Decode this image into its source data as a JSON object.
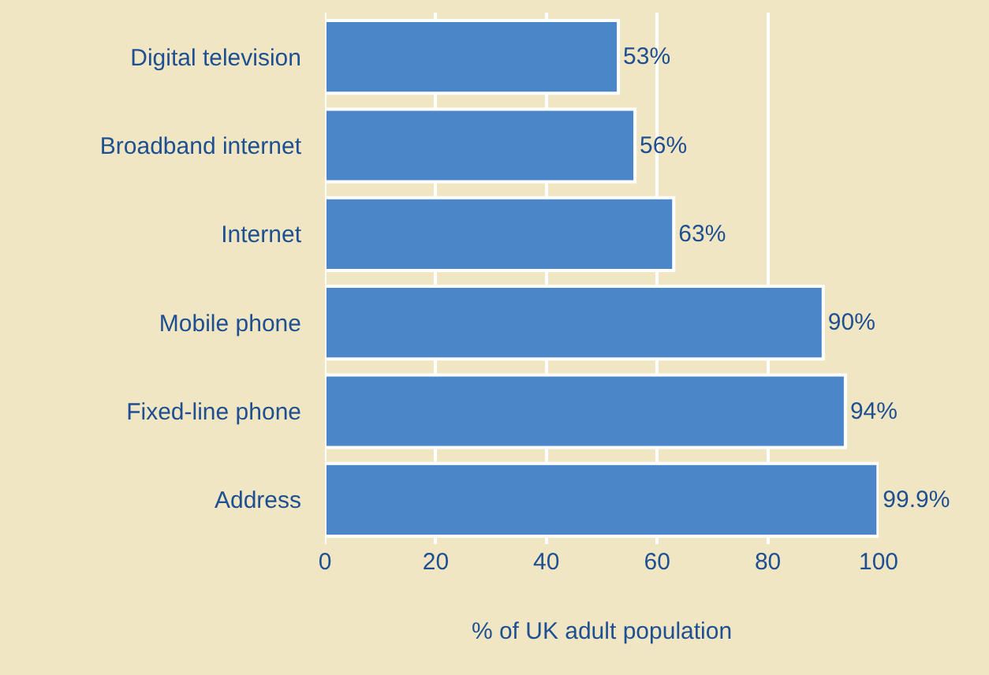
{
  "chart_data": {
    "type": "bar",
    "orientation": "horizontal",
    "xlabel": "% of UK adult population",
    "categories": [
      "Digital television",
      "Broadband internet",
      "Internet",
      "Mobile phone",
      "Fixed-line phone",
      "Address"
    ],
    "values": [
      53,
      56,
      63,
      90,
      94,
      99.9
    ],
    "value_labels": [
      "53%",
      "56%",
      "63%",
      "90%",
      "94%",
      "99.9%"
    ],
    "color": "#4a86c8",
    "xlim": [
      0,
      100
    ],
    "xticks": [
      0,
      20,
      40,
      60,
      80,
      100
    ],
    "grid": "x",
    "legend": false
  }
}
